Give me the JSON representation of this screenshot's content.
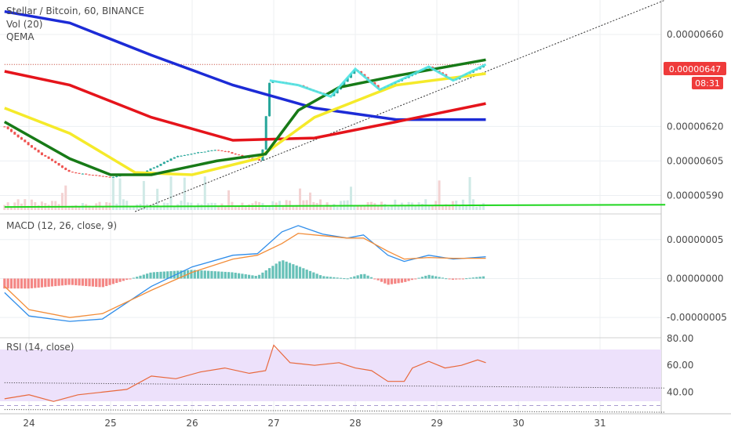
{
  "header": {
    "symbol": "Stellar / Bitcoin, 60, BINANCE",
    "vol_label": "Vol (20)",
    "qema_label": "QEMA"
  },
  "macd_label": "MACD (12, 26, close, 9)",
  "rsi_label": "RSI (14, close)",
  "price_tag": {
    "value": "0.00000647",
    "countdown": "08:31"
  },
  "colors": {
    "up": "#26a69a",
    "down": "#ef5350",
    "ma_blue": "#1c2bd6",
    "ma_red": "#e5141b",
    "ma_yellow": "#f5ea2a",
    "ma_green": "#177a17",
    "cyan": "#4de3e3",
    "macd_line": "#2f8dea",
    "signal_line": "#f28c38",
    "rsi_line": "#e8683c",
    "rsi_band": "#ede1fb",
    "support_green": "#1fd61f"
  },
  "chart_data": [
    {
      "type": "candlestick",
      "title": "Stellar / Bitcoin, 60, BINANCE",
      "x_ticks": [
        "24",
        "25",
        "26",
        "27",
        "28",
        "29",
        "30",
        "31"
      ],
      "ylim": [
        5.83e-06,
        6.75e-06
      ],
      "y_ticks": [
        "0.00000660",
        "0.00000620",
        "0.00000605",
        "0.00000590"
      ],
      "last_price": "0.00000647",
      "series": [
        {
          "name": "Vol (20)",
          "shown": "volume bars"
        },
        {
          "name": "QEMA",
          "shown": "4 moving averages (blue, red, yellow, green)"
        }
      ],
      "ma_blue": [
        [
          23.7,
          6.7e-06
        ],
        [
          24.5,
          6.65e-06
        ],
        [
          25.5,
          6.51e-06
        ],
        [
          26.5,
          6.38e-06
        ],
        [
          27.5,
          6.28e-06
        ],
        [
          28.5,
          6.23e-06
        ],
        [
          29.6,
          6.23e-06
        ]
      ],
      "ma_red": [
        [
          23.7,
          6.44e-06
        ],
        [
          24.5,
          6.38e-06
        ],
        [
          25.5,
          6.24e-06
        ],
        [
          26.5,
          6.14e-06
        ],
        [
          27.5,
          6.15e-06
        ],
        [
          28.5,
          6.22e-06
        ],
        [
          29.6,
          6.3e-06
        ]
      ],
      "ma_yellow": [
        [
          23.7,
          6.28e-06
        ],
        [
          24.5,
          6.17e-06
        ],
        [
          25.3,
          6e-06
        ],
        [
          26.0,
          5.99e-06
        ],
        [
          26.8,
          6.06e-06
        ],
        [
          27.5,
          6.24e-06
        ],
        [
          28.5,
          6.38e-06
        ],
        [
          29.6,
          6.43e-06
        ]
      ],
      "ma_green": [
        [
          23.7,
          6.22e-06
        ],
        [
          24.5,
          6.06e-06
        ],
        [
          25.0,
          5.99e-06
        ],
        [
          25.5,
          5.99e-06
        ],
        [
          26.3,
          6.05e-06
        ],
        [
          26.9,
          6.08e-06
        ],
        [
          27.3,
          6.27e-06
        ],
        [
          27.8,
          6.37e-06
        ],
        [
          28.5,
          6.42e-06
        ],
        [
          29.6,
          6.49e-06
        ]
      ],
      "trendline": [
        [
          25.3,
          5.83e-06
        ],
        [
          31.8,
          6.75e-06
        ]
      ],
      "support_line": [
        [
          23.7,
          5.85e-06
        ],
        [
          31.8,
          5.86e-06
        ]
      ],
      "resistance_line": [
        [
          23.7,
          6.47e-06
        ],
        [
          29.6,
          6.47e-06
        ]
      ]
    },
    {
      "type": "line",
      "title": "MACD (12, 26, close, 9)",
      "ylim": [
        -7.5e-08,
        8.3e-08
      ],
      "y_ticks": [
        "0.00000005",
        "0.00000000",
        "-0.00000005"
      ],
      "x_ticks": [],
      "macd": [
        [
          23.7,
          -1.8e-08
        ],
        [
          24.0,
          -4.8e-08
        ],
        [
          24.5,
          -5.5e-08
        ],
        [
          24.9,
          -5.2e-08
        ],
        [
          25.5,
          -1e-08
        ],
        [
          26.0,
          1.5e-08
        ],
        [
          26.5,
          3e-08
        ],
        [
          26.8,
          3.2e-08
        ],
        [
          27.1,
          6e-08
        ],
        [
          27.3,
          6.8e-08
        ],
        [
          27.6,
          5.7e-08
        ],
        [
          27.9,
          5.2e-08
        ],
        [
          28.1,
          5.6e-08
        ],
        [
          28.4,
          3e-08
        ],
        [
          28.6,
          2.2e-08
        ],
        [
          28.9,
          3e-08
        ],
        [
          29.2,
          2.5e-08
        ],
        [
          29.6,
          2.8e-08
        ]
      ],
      "signal": [
        [
          23.7,
          -1e-08
        ],
        [
          24.0,
          -4e-08
        ],
        [
          24.5,
          -5e-08
        ],
        [
          24.9,
          -4.5e-08
        ],
        [
          25.5,
          -1.5e-08
        ],
        [
          26.0,
          8e-09
        ],
        [
          26.5,
          2.5e-08
        ],
        [
          26.8,
          3e-08
        ],
        [
          27.1,
          4.5e-08
        ],
        [
          27.3,
          5.8e-08
        ],
        [
          27.6,
          5.5e-08
        ],
        [
          27.9,
          5.2e-08
        ],
        [
          28.1,
          5.2e-08
        ],
        [
          28.4,
          3.5e-08
        ],
        [
          28.6,
          2.5e-08
        ],
        [
          28.9,
          2.7e-08
        ],
        [
          29.2,
          2.6e-08
        ],
        [
          29.6,
          2.6e-08
        ]
      ]
    },
    {
      "type": "line",
      "title": "RSI (14, close)",
      "ylim": [
        25,
        80
      ],
      "y_ticks": [
        "80.00",
        "60.00",
        "40.00"
      ],
      "band": [
        30,
        70
      ],
      "x_ticks": [
        "24",
        "25",
        "26",
        "27",
        "28",
        "29",
        "30",
        "31"
      ],
      "values": [
        [
          23.7,
          35
        ],
        [
          24.0,
          38
        ],
        [
          24.3,
          33
        ],
        [
          24.6,
          38
        ],
        [
          24.9,
          40
        ],
        [
          25.2,
          42
        ],
        [
          25.5,
          52
        ],
        [
          25.8,
          50
        ],
        [
          26.1,
          55
        ],
        [
          26.4,
          58
        ],
        [
          26.7,
          54
        ],
        [
          26.9,
          56
        ],
        [
          27.0,
          75
        ],
        [
          27.2,
          62
        ],
        [
          27.5,
          60
        ],
        [
          27.8,
          62
        ],
        [
          28.0,
          58
        ],
        [
          28.2,
          56
        ],
        [
          28.4,
          48
        ],
        [
          28.6,
          48
        ],
        [
          28.7,
          58
        ],
        [
          28.9,
          63
        ],
        [
          29.1,
          58
        ],
        [
          29.3,
          60
        ],
        [
          29.5,
          64
        ],
        [
          29.6,
          62
        ]
      ],
      "trendline_1": [
        [
          23.7,
          47
        ],
        [
          31.8,
          43
        ]
      ],
      "trendline_2": [
        [
          23.7,
          27
        ],
        [
          31.8,
          25
        ]
      ]
    }
  ]
}
